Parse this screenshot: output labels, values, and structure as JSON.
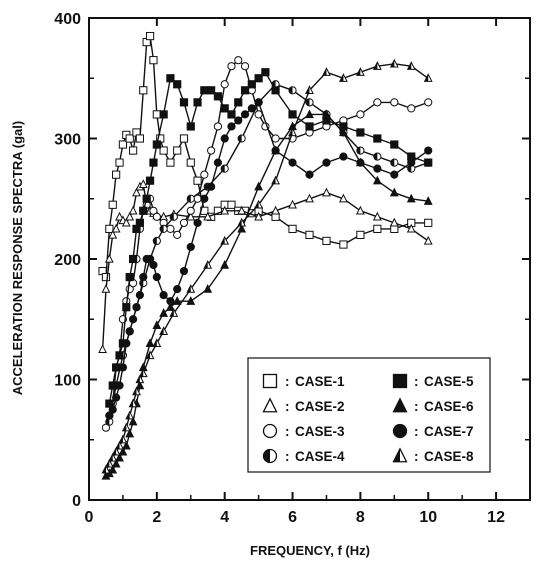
{
  "chart_data": {
    "type": "line",
    "title": "",
    "xlabel": "FREQUENCY, f (Hz)",
    "ylabel": "ACCELERATION RESPONSE SPECTRA (gal)",
    "xlim": [
      0,
      13
    ],
    "ylim": [
      0,
      400
    ],
    "x_ticks": [
      0,
      2,
      4,
      6,
      8,
      10,
      12
    ],
    "y_ticks": [
      0,
      100,
      200,
      300,
      400
    ],
    "grid": false,
    "legend_placement": "lower-right",
    "legend_separator": ":",
    "series": [
      {
        "name": "CASE-1",
        "marker": "square-open",
        "x": [
          0.4,
          0.5,
          0.6,
          0.7,
          0.8,
          0.9,
          1.0,
          1.1,
          1.2,
          1.3,
          1.4,
          1.5,
          1.6,
          1.7,
          1.8,
          1.9,
          2.0,
          2.1,
          2.2,
          2.4,
          2.6,
          2.8,
          3.0,
          3.2,
          3.4,
          3.6,
          3.8,
          4.0,
          4.2,
          4.4,
          4.6,
          4.8,
          5.0,
          5.5,
          6.0,
          6.5,
          7.0,
          7.5,
          8.0,
          8.5,
          9.0,
          9.5,
          10.0
        ],
        "y": [
          190,
          185,
          225,
          245,
          270,
          280,
          295,
          303,
          300,
          290,
          305,
          300,
          340,
          380,
          385,
          365,
          320,
          300,
          290,
          280,
          290,
          300,
          280,
          265,
          240,
          235,
          240,
          245,
          245,
          240,
          240,
          238,
          240,
          235,
          225,
          220,
          215,
          212,
          220,
          225,
          225,
          230,
          230
        ]
      },
      {
        "name": "CASE-2",
        "marker": "triangle-open",
        "x": [
          0.4,
          0.5,
          0.6,
          0.7,
          0.8,
          0.9,
          1.0,
          1.1,
          1.2,
          1.3,
          1.4,
          1.5,
          1.6,
          1.7,
          1.8,
          1.9,
          2.0,
          2.2,
          2.5,
          3.0,
          3.5,
          4.0,
          4.5,
          5.0,
          5.5,
          6.0,
          6.5,
          7.0,
          7.5,
          8.0,
          8.5,
          9.0,
          9.5,
          10.0
        ],
        "y": [
          125,
          175,
          200,
          220,
          225,
          235,
          232,
          230,
          235,
          240,
          255,
          260,
          262,
          245,
          240,
          238,
          236,
          235,
          237,
          235,
          235,
          240,
          240,
          235,
          240,
          245,
          250,
          255,
          250,
          240,
          235,
          230,
          225,
          215
        ]
      },
      {
        "name": "CASE-3",
        "marker": "circle-open",
        "x": [
          0.5,
          0.6,
          0.7,
          0.8,
          0.9,
          1.0,
          1.1,
          1.2,
          1.3,
          1.4,
          1.5,
          1.6,
          1.7,
          1.8,
          1.9,
          2.0,
          2.2,
          2.4,
          2.6,
          2.8,
          3.0,
          3.2,
          3.4,
          3.6,
          3.8,
          4.0,
          4.2,
          4.4,
          4.6,
          4.8,
          5.0,
          5.2,
          5.5,
          6.0,
          6.5,
          7.0,
          7.5,
          8.0,
          8.5,
          9.0,
          9.5,
          10.0
        ],
        "y": [
          60,
          70,
          80,
          110,
          120,
          150,
          165,
          175,
          180,
          200,
          225,
          240,
          245,
          250,
          240,
          235,
          230,
          225,
          220,
          230,
          240,
          250,
          270,
          290,
          310,
          345,
          360,
          365,
          360,
          340,
          320,
          310,
          300,
          300,
          305,
          310,
          315,
          320,
          330,
          330,
          325,
          330
        ]
      },
      {
        "name": "CASE-4",
        "marker": "circle-half",
        "x": [
          0.6,
          0.8,
          1.0,
          1.2,
          1.4,
          1.6,
          1.8,
          2.0,
          2.2,
          2.5,
          3.0,
          3.5,
          4.0,
          4.5,
          5.0,
          5.5,
          6.0,
          6.5,
          7.0,
          7.5,
          8.0,
          8.5,
          9.0,
          9.5,
          10.0
        ],
        "y": [
          65,
          95,
          120,
          140,
          160,
          180,
          200,
          215,
          225,
          235,
          250,
          260,
          275,
          300,
          330,
          345,
          340,
          330,
          320,
          305,
          290,
          285,
          280,
          275,
          280
        ]
      },
      {
        "name": "CASE-5",
        "marker": "square-filled",
        "x": [
          0.6,
          0.7,
          0.8,
          0.9,
          1.0,
          1.1,
          1.2,
          1.3,
          1.4,
          1.5,
          1.6,
          1.7,
          1.8,
          1.9,
          2.0,
          2.2,
          2.4,
          2.6,
          2.8,
          3.0,
          3.2,
          3.4,
          3.6,
          3.8,
          4.0,
          4.2,
          4.4,
          4.6,
          4.8,
          5.0,
          5.2,
          5.5,
          6.0,
          6.5,
          7.0,
          7.5,
          8.0,
          8.5,
          9.0,
          9.5,
          10.0
        ],
        "y": [
          80,
          95,
          110,
          120,
          130,
          160,
          185,
          200,
          225,
          230,
          240,
          250,
          265,
          280,
          295,
          320,
          350,
          345,
          330,
          310,
          330,
          340,
          340,
          335,
          325,
          320,
          330,
          340,
          345,
          350,
          355,
          340,
          320,
          310,
          315,
          310,
          305,
          300,
          295,
          285,
          280
        ]
      },
      {
        "name": "CASE-6",
        "marker": "triangle-filled",
        "x": [
          0.5,
          0.6,
          0.7,
          0.8,
          0.9,
          1.0,
          1.1,
          1.2,
          1.3,
          1.4,
          1.5,
          1.6,
          1.8,
          2.0,
          2.2,
          2.4,
          2.6,
          3.0,
          3.5,
          4.0,
          4.5,
          5.0,
          5.5,
          6.0,
          6.5,
          7.0,
          7.5,
          8.0,
          8.5,
          9.0,
          9.5,
          10.0
        ],
        "y": [
          20,
          22,
          25,
          30,
          35,
          40,
          45,
          55,
          65,
          80,
          95,
          110,
          130,
          145,
          155,
          160,
          165,
          165,
          175,
          195,
          225,
          260,
          290,
          310,
          320,
          320,
          305,
          280,
          265,
          255,
          250,
          248
        ]
      },
      {
        "name": "CASE-7",
        "marker": "circle-filled",
        "x": [
          0.6,
          0.7,
          0.8,
          0.9,
          1.0,
          1.1,
          1.2,
          1.3,
          1.4,
          1.5,
          1.6,
          1.7,
          1.8,
          1.9,
          2.0,
          2.2,
          2.4,
          2.6,
          2.8,
          3.0,
          3.2,
          3.4,
          3.6,
          3.8,
          4.0,
          4.2,
          4.4,
          4.6,
          4.8,
          5.0,
          5.5,
          6.0,
          6.5,
          7.0,
          7.5,
          8.0,
          8.5,
          9.0,
          9.5,
          10.0
        ],
        "y": [
          70,
          75,
          85,
          95,
          110,
          130,
          140,
          150,
          160,
          170,
          185,
          200,
          200,
          195,
          185,
          170,
          165,
          175,
          190,
          210,
          230,
          250,
          260,
          280,
          300,
          310,
          315,
          320,
          325,
          330,
          290,
          280,
          270,
          280,
          285,
          280,
          275,
          270,
          280,
          290
        ]
      },
      {
        "name": "CASE-8",
        "marker": "triangle-half",
        "x": [
          0.5,
          0.6,
          0.7,
          0.8,
          0.9,
          1.0,
          1.1,
          1.2,
          1.3,
          1.4,
          1.5,
          1.6,
          1.8,
          2.0,
          2.2,
          2.5,
          3.0,
          3.5,
          4.0,
          4.5,
          5.0,
          5.5,
          6.0,
          6.5,
          7.0,
          7.5,
          8.0,
          8.5,
          9.0,
          9.5,
          10.0
        ],
        "y": [
          25,
          30,
          35,
          40,
          45,
          50,
          60,
          70,
          80,
          90,
          100,
          105,
          120,
          130,
          140,
          155,
          175,
          195,
          215,
          230,
          245,
          265,
          305,
          340,
          355,
          350,
          355,
          360,
          362,
          360,
          350
        ]
      }
    ]
  }
}
